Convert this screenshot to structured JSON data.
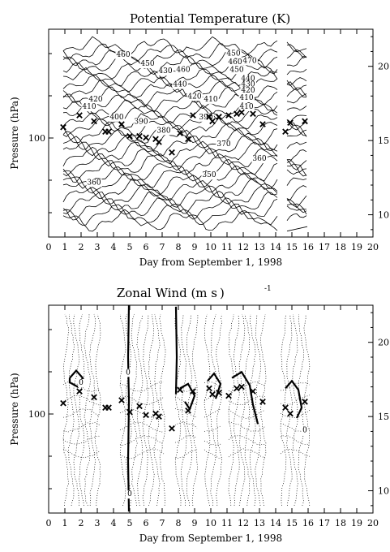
{
  "chart_data": [
    {
      "type": "contour",
      "title": "Potential Temperature (K)",
      "xlabel": "Day from September 1, 1998",
      "ylabel": "Pressure (hPa)",
      "xlim": [
        0,
        20
      ],
      "x_ticks": [
        0,
        1,
        2,
        3,
        4,
        5,
        6,
        7,
        8,
        9,
        10,
        11,
        12,
        13,
        14,
        15,
        16,
        17,
        18,
        19,
        20
      ],
      "y_tick_labels": [
        "100"
      ],
      "right_axis_ticks": [
        10,
        15,
        20
      ],
      "right_axis_range": [
        8.5,
        22.5
      ],
      "data_gap": [
        14.2,
        14.7
      ],
      "contour_labels": [
        {
          "text": "460",
          "day": 4.6,
          "km": 20.8
        },
        {
          "text": "450",
          "day": 11.4,
          "km": 20.9
        },
        {
          "text": "460",
          "day": 11.5,
          "km": 20.3
        },
        {
          "text": "470",
          "day": 12.4,
          "km": 20.4
        },
        {
          "text": "450",
          "day": 6.1,
          "km": 20.2
        },
        {
          "text": "450",
          "day": 11.6,
          "km": 19.8
        },
        {
          "text": "430",
          "day": 7.2,
          "km": 19.7
        },
        {
          "text": "460",
          "day": 8.3,
          "km": 19.8
        },
        {
          "text": "440",
          "day": 12.3,
          "km": 19.2
        },
        {
          "text": "430",
          "day": 12.3,
          "km": 18.8
        },
        {
          "text": "440",
          "day": 8.1,
          "km": 18.8
        },
        {
          "text": "420",
          "day": 12.3,
          "km": 18.4
        },
        {
          "text": "420",
          "day": 2.9,
          "km": 17.8
        },
        {
          "text": "420",
          "day": 9.0,
          "km": 18.0
        },
        {
          "text": "410",
          "day": 10.0,
          "km": 17.8
        },
        {
          "text": "410",
          "day": 12.2,
          "km": 17.9
        },
        {
          "text": "410",
          "day": 2.5,
          "km": 17.3
        },
        {
          "text": "410",
          "day": 12.2,
          "km": 17.3
        },
        {
          "text": "400",
          "day": 4.2,
          "km": 16.6
        },
        {
          "text": "390",
          "day": 5.7,
          "km": 16.3
        },
        {
          "text": "390",
          "day": 9.7,
          "km": 16.6
        },
        {
          "text": "380",
          "day": 7.1,
          "km": 15.7
        },
        {
          "text": "370",
          "day": 10.8,
          "km": 14.8
        },
        {
          "text": "360",
          "day": 13.0,
          "km": 13.8
        },
        {
          "text": "350",
          "day": 9.9,
          "km": 12.7
        },
        {
          "text": "360",
          "day": 2.8,
          "km": 12.2
        }
      ],
      "tropopause_markers": [
        [
          0.9,
          15.9
        ],
        [
          1.9,
          16.7
        ],
        [
          2.8,
          16.3
        ],
        [
          3.5,
          15.6
        ],
        [
          3.7,
          15.6
        ],
        [
          4.5,
          16.1
        ],
        [
          5.0,
          15.3
        ],
        [
          5.6,
          15.3
        ],
        [
          6.0,
          15.2
        ],
        [
          6.6,
          15.1
        ],
        [
          6.8,
          14.9
        ],
        [
          7.6,
          14.2
        ],
        [
          8.1,
          15.5
        ],
        [
          8.6,
          15.1
        ],
        [
          8.9,
          16.7
        ],
        [
          9.9,
          16.6
        ],
        [
          10.1,
          16.3
        ],
        [
          10.5,
          16.6
        ],
        [
          11.1,
          16.7
        ],
        [
          11.6,
          16.8
        ],
        [
          11.9,
          16.9
        ],
        [
          12.6,
          16.8
        ],
        [
          13.2,
          16.1
        ],
        [
          14.6,
          15.6
        ],
        [
          14.9,
          16.2
        ],
        [
          15.8,
          16.3
        ]
      ]
    },
    {
      "type": "contour",
      "title": "Zonal Wind (m s",
      "title_superscript": "-1",
      "title_suffix": ")",
      "xlabel": "Day from September 1, 1998",
      "ylabel": "Pressure (hPa)",
      "xlim": [
        0,
        20
      ],
      "x_ticks": [
        0,
        1,
        2,
        3,
        4,
        5,
        6,
        7,
        8,
        9,
        10,
        11,
        12,
        13,
        14,
        15,
        16,
        17,
        18,
        19,
        20
      ],
      "y_tick_labels": [
        "100"
      ],
      "right_axis_ticks": [
        10,
        15,
        20
      ],
      "right_axis_range": [
        8.5,
        22.5
      ],
      "data_gaps": [
        [
          3.2,
          4.4
        ],
        [
          7.2,
          7.8
        ],
        [
          9.2,
          9.6
        ],
        [
          10.7,
          11.1
        ],
        [
          13.4,
          14.3
        ],
        [
          16.1,
          20
        ]
      ],
      "contour_labels": [
        {
          "text": "0",
          "day": 2.0,
          "km": 17.3
        },
        {
          "text": "0",
          "day": 4.9,
          "km": 18.0
        },
        {
          "text": "0",
          "day": 5.0,
          "km": 9.8
        },
        {
          "text": "0",
          "day": 15.8,
          "km": 14.1
        }
      ],
      "tropopause_markers": [
        [
          0.9,
          15.9
        ],
        [
          1.9,
          16.7
        ],
        [
          2.8,
          16.3
        ],
        [
          3.5,
          15.6
        ],
        [
          3.7,
          15.6
        ],
        [
          4.5,
          16.1
        ],
        [
          5.0,
          15.3
        ],
        [
          5.6,
          15.7
        ],
        [
          6.0,
          15.1
        ],
        [
          6.6,
          15.2
        ],
        [
          6.8,
          15.0
        ],
        [
          7.6,
          14.2
        ],
        [
          8.1,
          16.8
        ],
        [
          8.6,
          15.4
        ],
        [
          8.9,
          16.7
        ],
        [
          9.9,
          16.9
        ],
        [
          10.1,
          16.5
        ],
        [
          10.5,
          16.6
        ],
        [
          11.1,
          16.4
        ],
        [
          11.6,
          16.9
        ],
        [
          11.9,
          17.0
        ],
        [
          12.6,
          16.7
        ],
        [
          13.2,
          16.0
        ],
        [
          14.6,
          15.6
        ],
        [
          14.9,
          15.2
        ],
        [
          15.8,
          16.0
        ]
      ]
    }
  ]
}
